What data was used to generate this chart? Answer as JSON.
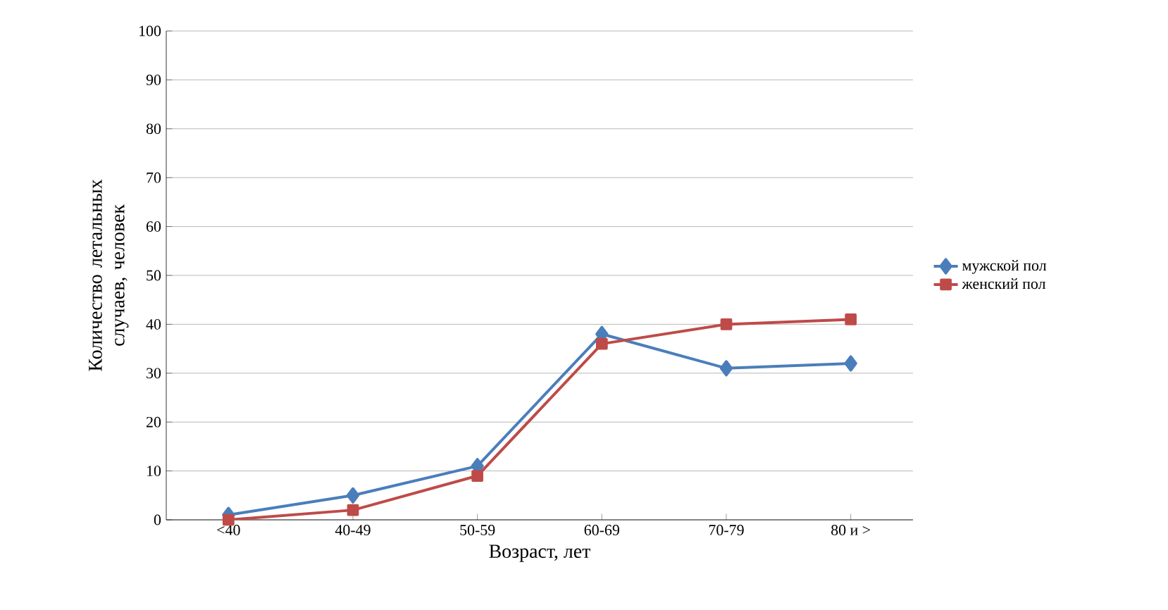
{
  "chart_data": {
    "type": "line",
    "xlabel": "Возраст, лет",
    "ylabel": "Количество летальных случаев, человек",
    "categories": [
      "<40",
      "40-49",
      "50-59",
      "60-69",
      "70-79",
      "80 и >"
    ],
    "series": [
      {
        "name": "мужской пол",
        "color": "#4a7ebb",
        "marker": "diamond",
        "values": [
          1,
          5,
          11,
          38,
          31,
          32
        ]
      },
      {
        "name": "женский пол",
        "color": "#be4b48",
        "marker": "square",
        "values": [
          0,
          2,
          9,
          36,
          40,
          41
        ]
      }
    ],
    "ylim": [
      0,
      100
    ],
    "yticks": [
      0,
      10,
      20,
      30,
      40,
      50,
      60,
      70,
      80,
      90,
      100
    ],
    "grid": "y",
    "legend": "right"
  }
}
